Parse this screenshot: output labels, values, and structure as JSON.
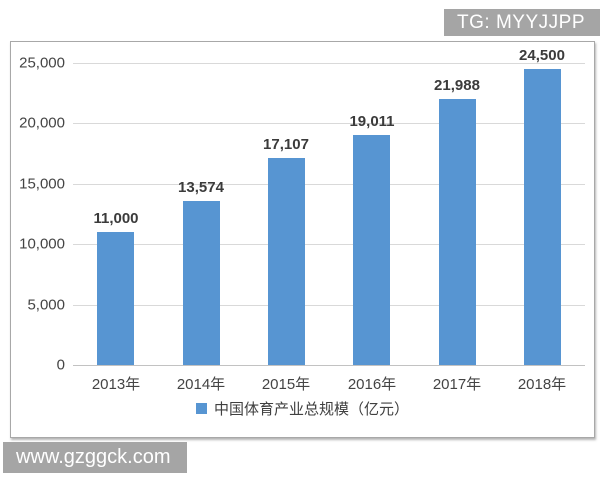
{
  "badge": {
    "text": "TG: MYYJJPP"
  },
  "watermark": {
    "text": "www.gzggck.com"
  },
  "chart_data": {
    "type": "bar",
    "title": "",
    "categories": [
      "2013年",
      "2014年",
      "2015年",
      "2016年",
      "2017年",
      "2018年"
    ],
    "values": [
      11000,
      13574,
      17107,
      19011,
      21988,
      24500
    ],
    "value_labels": [
      "11,000",
      "13,574",
      "17,107",
      "19,011",
      "21,988",
      "24,500"
    ],
    "y_ticks": [
      0,
      5000,
      10000,
      15000,
      20000,
      25000
    ],
    "y_tick_labels": [
      "0",
      "5,000",
      "10,000",
      "15,000",
      "20,000",
      "25,000"
    ],
    "ylim": [
      0,
      25000
    ],
    "xlabel": "",
    "ylabel": "",
    "grid": true,
    "bar_color": "#5795d2",
    "legend_position": "bottom",
    "legend": {
      "label": "中国体育产业总规模（亿元）",
      "marker_color": "#5795d2"
    }
  }
}
